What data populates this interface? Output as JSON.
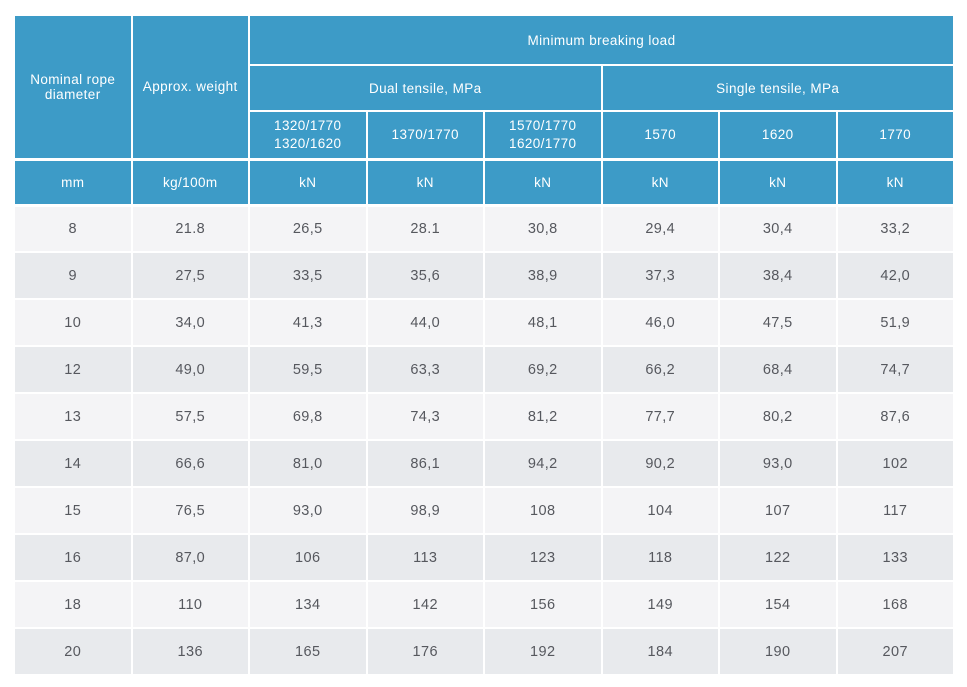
{
  "colors": {
    "header_bg": "#3d9bc7",
    "header_text": "#ffffff",
    "row_light": "#f4f4f6",
    "row_dark": "#e8eaed",
    "data_text": "#56585e",
    "grid": "#ffffff"
  },
  "table": {
    "header": {
      "col_diameter": "Nominal rope diameter",
      "col_weight": "Approx. weight",
      "breaking_load": "Minimum breaking load",
      "dual_tensile": "Dual tensile, MPa",
      "single_tensile": "Single tensile, MPa",
      "grades": [
        "1320/1770\n1320/1620",
        "1370/1770",
        "1570/1770\n1620/1770",
        "1570",
        "1620",
        "1770"
      ],
      "units": [
        "mm",
        "kg/100m",
        "kN",
        "kN",
        "kN",
        "kN",
        "kN",
        "kN"
      ]
    },
    "rows": [
      {
        "diameter": "8",
        "weight": "21.8",
        "values": [
          "26,5",
          "28.1",
          "30,8",
          "29,4",
          "30,4",
          "33,2"
        ]
      },
      {
        "diameter": "9",
        "weight": "27,5",
        "values": [
          "33,5",
          "35,6",
          "38,9",
          "37,3",
          "38,4",
          "42,0"
        ]
      },
      {
        "diameter": "10",
        "weight": "34,0",
        "values": [
          "41,3",
          "44,0",
          "48,1",
          "46,0",
          "47,5",
          "51,9"
        ]
      },
      {
        "diameter": "12",
        "weight": "49,0",
        "values": [
          "59,5",
          "63,3",
          "69,2",
          "66,2",
          "68,4",
          "74,7"
        ]
      },
      {
        "diameter": "13",
        "weight": "57,5",
        "values": [
          "69,8",
          "74,3",
          "81,2",
          "77,7",
          "80,2",
          "87,6"
        ]
      },
      {
        "diameter": "14",
        "weight": "66,6",
        "values": [
          "81,0",
          "86,1",
          "94,2",
          "90,2",
          "93,0",
          "102"
        ]
      },
      {
        "diameter": "15",
        "weight": "76,5",
        "values": [
          "93,0",
          "98,9",
          "108",
          "104",
          "107",
          "117"
        ]
      },
      {
        "diameter": "16",
        "weight": "87,0",
        "values": [
          "106",
          "113",
          "123",
          "118",
          "122",
          "133"
        ]
      },
      {
        "diameter": "18",
        "weight": "110",
        "values": [
          "134",
          "142",
          "156",
          "149",
          "154",
          "168"
        ]
      },
      {
        "diameter": "20",
        "weight": "136",
        "values": [
          "165",
          "176",
          "192",
          "184",
          "190",
          "207"
        ]
      }
    ]
  },
  "chart_data": {
    "type": "table",
    "title": "Minimum breaking load",
    "column_groups": {
      "dual_tensile_mpa": [
        "1320/1770 1320/1620",
        "1370/1770",
        "1570/1770 1620/1770"
      ],
      "single_tensile_mpa": [
        "1570",
        "1620",
        "1770"
      ]
    },
    "columns": [
      "Nominal rope diameter (mm)",
      "Approx. weight (kg/100m)",
      "Dual 1320/1770 1320/1620 (kN)",
      "Dual 1370/1770 (kN)",
      "Dual 1570/1770 1620/1770 (kN)",
      "Single 1570 (kN)",
      "Single 1620 (kN)",
      "Single 1770 (kN)"
    ],
    "rows": [
      [
        "8",
        "21.8",
        "26,5",
        "28.1",
        "30,8",
        "29,4",
        "30,4",
        "33,2"
      ],
      [
        "9",
        "27,5",
        "33,5",
        "35,6",
        "38,9",
        "37,3",
        "38,4",
        "42,0"
      ],
      [
        "10",
        "34,0",
        "41,3",
        "44,0",
        "48,1",
        "46,0",
        "47,5",
        "51,9"
      ],
      [
        "12",
        "49,0",
        "59,5",
        "63,3",
        "69,2",
        "66,2",
        "68,4",
        "74,7"
      ],
      [
        "13",
        "57,5",
        "69,8",
        "74,3",
        "81,2",
        "77,7",
        "80,2",
        "87,6"
      ],
      [
        "14",
        "66,6",
        "81,0",
        "86,1",
        "94,2",
        "90,2",
        "93,0",
        "102"
      ],
      [
        "15",
        "76,5",
        "93,0",
        "98,9",
        "108",
        "104",
        "107",
        "117"
      ],
      [
        "16",
        "87,0",
        "106",
        "113",
        "123",
        "118",
        "122",
        "133"
      ],
      [
        "18",
        "110",
        "134",
        "142",
        "156",
        "149",
        "154",
        "168"
      ],
      [
        "20",
        "136",
        "165",
        "176",
        "192",
        "184",
        "190",
        "207"
      ]
    ]
  }
}
